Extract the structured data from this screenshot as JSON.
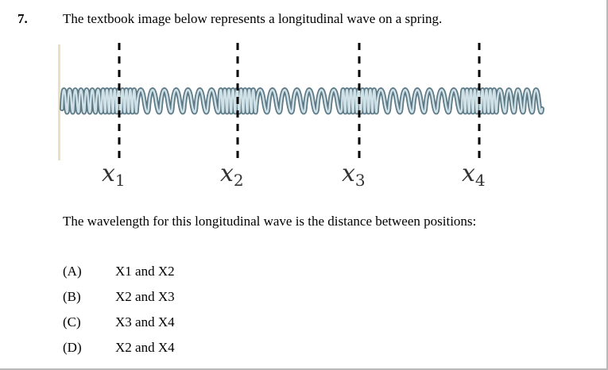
{
  "question": {
    "number": "7.",
    "prompt": "The textbook image below represents a longitudinal wave on a spring.",
    "question_text": "The wavelength for this longitudinal wave is the distance between positions:",
    "choices": [
      {
        "letter": "(A)",
        "text": "X1 and X2"
      },
      {
        "letter": "(B)",
        "text": "X2 and X3"
      },
      {
        "letter": "(C)",
        "text": "X3 and X4"
      },
      {
        "letter": "(D)",
        "text": "X2 and X4"
      }
    ]
  },
  "figure": {
    "markers": [
      {
        "var": "x",
        "sub": "1"
      },
      {
        "var": "x",
        "sub": "2"
      },
      {
        "var": "x",
        "sub": "3"
      },
      {
        "var": "x",
        "sub": "4"
      }
    ],
    "colors": {
      "spring_light": "#cfe0e6",
      "spring_dark": "#5d7a86",
      "dashes": "#000000",
      "wall": "#e9dfc2"
    }
  }
}
